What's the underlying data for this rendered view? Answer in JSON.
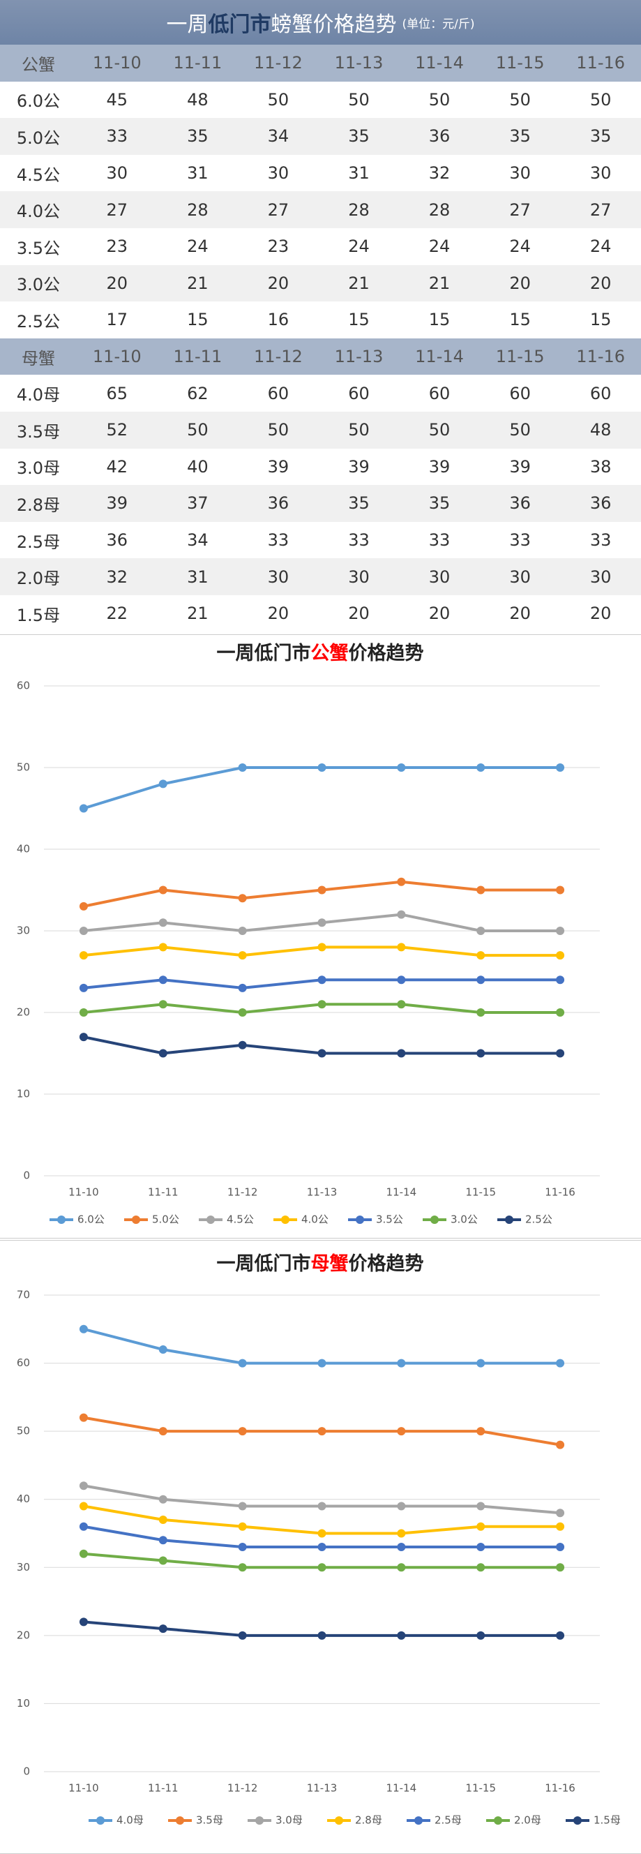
{
  "table": {
    "title_parts": [
      "一周",
      "低门市",
      "螃蟹价格趋势"
    ],
    "unit": "(单位：元/斤)",
    "sections": [
      {
        "header": [
          "公蟹",
          "11-10",
          "11-11",
          "11-12",
          "11-13",
          "11-14",
          "11-15",
          "11-16"
        ],
        "rows": [
          [
            "6.0公",
            45,
            48,
            50,
            50,
            50,
            50,
            50
          ],
          [
            "5.0公",
            33,
            35,
            34,
            35,
            36,
            35,
            35
          ],
          [
            "4.5公",
            30,
            31,
            30,
            31,
            32,
            30,
            30
          ],
          [
            "4.0公",
            27,
            28,
            27,
            28,
            28,
            27,
            27
          ],
          [
            "3.5公",
            23,
            24,
            23,
            24,
            24,
            24,
            24
          ],
          [
            "3.0公",
            20,
            21,
            20,
            21,
            21,
            20,
            20
          ],
          [
            "2.5公",
            17,
            15,
            16,
            15,
            15,
            15,
            15
          ]
        ]
      },
      {
        "header": [
          "母蟹",
          "11-10",
          "11-11",
          "11-12",
          "11-13",
          "11-14",
          "11-15",
          "11-16"
        ],
        "rows": [
          [
            "4.0母",
            65,
            62,
            60,
            60,
            60,
            60,
            60
          ],
          [
            "3.5母",
            52,
            50,
            50,
            50,
            50,
            50,
            48
          ],
          [
            "3.0母",
            42,
            40,
            39,
            39,
            39,
            39,
            38
          ],
          [
            "2.8母",
            39,
            37,
            36,
            35,
            35,
            36,
            36
          ],
          [
            "2.5母",
            36,
            34,
            33,
            33,
            33,
            33,
            33
          ],
          [
            "2.0母",
            32,
            31,
            30,
            30,
            30,
            30,
            30
          ],
          [
            "1.5母",
            22,
            21,
            20,
            20,
            20,
            20,
            20
          ]
        ]
      }
    ]
  },
  "chart_data": [
    {
      "type": "line",
      "title_parts": [
        "一周低门市",
        "公蟹",
        "价格趋势"
      ],
      "title_colors": [
        "#222222",
        "#ff0000",
        "#222222"
      ],
      "categories": [
        "11-10",
        "11-11",
        "11-12",
        "11-13",
        "11-14",
        "11-15",
        "11-16"
      ],
      "ylim": [
        0,
        60
      ],
      "yticks": [
        0,
        10,
        20,
        30,
        40,
        50,
        60
      ],
      "grid": true,
      "legend": "bottom",
      "series": [
        {
          "name": "6.0公",
          "color": "#5b9bd5",
          "values": [
            45,
            48,
            50,
            50,
            50,
            50,
            50
          ]
        },
        {
          "name": "5.0公",
          "color": "#ed7d31",
          "values": [
            33,
            35,
            34,
            35,
            36,
            35,
            35
          ]
        },
        {
          "name": "4.5公",
          "color": "#a5a5a5",
          "values": [
            30,
            31,
            30,
            31,
            32,
            30,
            30
          ]
        },
        {
          "name": "4.0公",
          "color": "#ffc000",
          "values": [
            27,
            28,
            27,
            28,
            28,
            27,
            27
          ]
        },
        {
          "name": "3.5公",
          "color": "#4472c4",
          "values": [
            23,
            24,
            23,
            24,
            24,
            24,
            24
          ]
        },
        {
          "name": "3.0公",
          "color": "#70ad47",
          "values": [
            20,
            21,
            20,
            21,
            21,
            20,
            20
          ]
        },
        {
          "name": "2.5公",
          "color": "#264478",
          "values": [
            17,
            15,
            16,
            15,
            15,
            15,
            15
          ]
        }
      ]
    },
    {
      "type": "line",
      "title_parts": [
        "一周低门市",
        "母蟹",
        "价格趋势"
      ],
      "title_colors": [
        "#222222",
        "#ff0000",
        "#222222"
      ],
      "categories": [
        "11-10",
        "11-11",
        "11-12",
        "11-13",
        "11-14",
        "11-15",
        "11-16"
      ],
      "ylim": [
        0,
        70
      ],
      "yticks": [
        0,
        10,
        20,
        30,
        40,
        50,
        60,
        70
      ],
      "grid": true,
      "legend": "bottom",
      "series": [
        {
          "name": "4.0母",
          "color": "#5b9bd5",
          "values": [
            65,
            62,
            60,
            60,
            60,
            60,
            60
          ]
        },
        {
          "name": "3.5母",
          "color": "#ed7d31",
          "values": [
            52,
            50,
            50,
            50,
            50,
            50,
            48
          ]
        },
        {
          "name": "3.0母",
          "color": "#a5a5a5",
          "values": [
            42,
            40,
            39,
            39,
            39,
            39,
            38
          ]
        },
        {
          "name": "2.8母",
          "color": "#ffc000",
          "values": [
            39,
            37,
            36,
            35,
            35,
            36,
            36
          ]
        },
        {
          "name": "2.5母",
          "color": "#4472c4",
          "values": [
            36,
            34,
            33,
            33,
            33,
            33,
            33
          ]
        },
        {
          "name": "2.0母",
          "color": "#70ad47",
          "values": [
            32,
            31,
            30,
            30,
            30,
            30,
            30
          ]
        },
        {
          "name": "1.5母",
          "color": "#264478",
          "values": [
            22,
            21,
            20,
            20,
            20,
            20,
            20
          ]
        }
      ]
    }
  ]
}
